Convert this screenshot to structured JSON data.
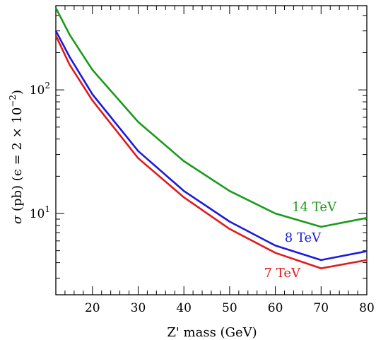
{
  "chart_data": {
    "type": "line",
    "title": "",
    "xlabel": "Z' mass (GeV)",
    "ylabel_parts": {
      "sigma": "σ",
      "main": " (pb) (ϵ = 2 × 10",
      "exp": "−2",
      "close": ")"
    },
    "xlim": [
      12,
      80
    ],
    "ylim": [
      2.2,
      480
    ],
    "yscale": "log",
    "xticks": [
      20,
      30,
      40,
      50,
      60,
      70,
      80
    ],
    "yticks": [
      {
        "value": 10,
        "base": "10",
        "exp": "1"
      },
      {
        "value": 100,
        "base": "10",
        "exp": "2"
      }
    ],
    "grid": false,
    "series": [
      {
        "name": "14 TeV",
        "color": "#1a9a1a",
        "x": [
          12,
          15,
          20,
          30,
          40,
          50,
          60,
          70,
          80
        ],
        "y": [
          460,
          280,
          145,
          55,
          26.5,
          15.2,
          10.0,
          7.8,
          9.2
        ]
      },
      {
        "name": "8 TeV",
        "color": "#1a1adc",
        "x": [
          12,
          15,
          20,
          30,
          40,
          50,
          60,
          70,
          80
        ],
        "y": [
          300,
          185,
          92,
          32,
          15.2,
          8.6,
          5.5,
          4.2,
          4.95
        ]
      },
      {
        "name": "7 TeV",
        "color": "#e01a1a",
        "x": [
          12,
          15,
          20,
          30,
          40,
          50,
          60,
          70,
          80
        ],
        "y": [
          275,
          160,
          82,
          28,
          13.5,
          7.5,
          4.8,
          3.6,
          4.2
        ]
      }
    ]
  }
}
